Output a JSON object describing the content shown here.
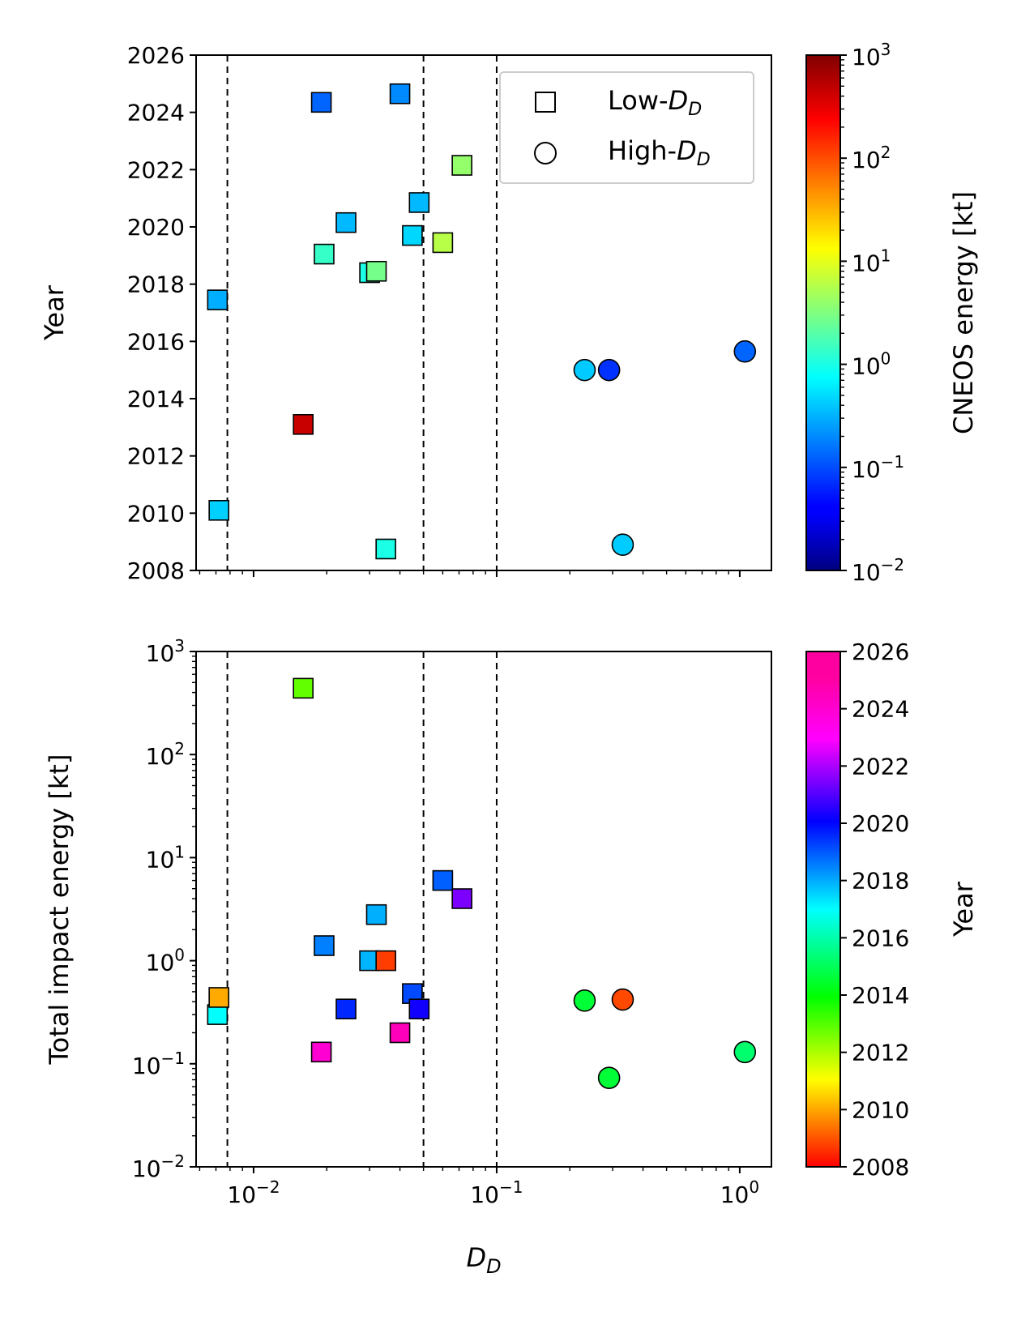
{
  "chart_data": [
    {
      "type": "scatter",
      "panel": "top",
      "xlabel": "D_D",
      "ylabel": "Year",
      "xscale": "log",
      "xlim": [
        0.0058,
        1.35
      ],
      "ylim": [
        2008,
        2026
      ],
      "y_ticks": [
        2008,
        2010,
        2012,
        2014,
        2016,
        2018,
        2020,
        2022,
        2024,
        2026
      ],
      "vertical_lines": [
        0.0078,
        0.05,
        0.1
      ],
      "legend": {
        "position": "top-right",
        "entries": [
          {
            "marker": "square",
            "label_main": "Low-",
            "label_var": "D",
            "label_sub": "D"
          },
          {
            "marker": "circle",
            "label_main": "High-",
            "label_var": "D",
            "label_sub": "D"
          }
        ]
      },
      "colorbar": {
        "label": "CNEOS energy [kt]",
        "scale": "log",
        "range": [
          0.01,
          1000
        ],
        "ticks": [
          {
            "base": "10",
            "exp": "3",
            "value": 1000
          },
          {
            "base": "10",
            "exp": "2",
            "value": 100
          },
          {
            "base": "10",
            "exp": "1",
            "value": 10
          },
          {
            "base": "10",
            "exp": "0",
            "value": 1
          },
          {
            "base": "10",
            "exp": "−1",
            "value": 0.1
          },
          {
            "base": "10",
            "exp": "−2",
            "value": 0.01
          }
        ]
      }
    },
    {
      "type": "scatter",
      "panel": "bottom",
      "xlabel": "D_D",
      "ylabel": "Total impact energy [kt]",
      "xscale": "log",
      "yscale": "log",
      "xlim": [
        0.0058,
        1.35
      ],
      "ylim": [
        0.01,
        1000
      ],
      "x_ticks": [
        {
          "base": "10",
          "exp": "−2",
          "value": 0.01
        },
        {
          "base": "10",
          "exp": "−1",
          "value": 0.1
        },
        {
          "base": "10",
          "exp": "0",
          "value": 1
        }
      ],
      "y_ticks": [
        {
          "base": "10",
          "exp": "3",
          "value": 1000
        },
        {
          "base": "10",
          "exp": "2",
          "value": 100
        },
        {
          "base": "10",
          "exp": "1",
          "value": 10
        },
        {
          "base": "10",
          "exp": "0",
          "value": 1
        },
        {
          "base": "10",
          "exp": "−1",
          "value": 0.1
        },
        {
          "base": "10",
          "exp": "−2",
          "value": 0.01
        }
      ],
      "vertical_lines": [
        0.0078,
        0.05,
        0.1
      ],
      "colorbar": {
        "label": "Year",
        "scale": "linear",
        "range": [
          2008,
          2026
        ],
        "ticks": [
          2026,
          2024,
          2022,
          2020,
          2018,
          2016,
          2014,
          2012,
          2010,
          2008
        ]
      }
    }
  ],
  "events": [
    {
      "dd": 0.0071,
      "year": 2017.45,
      "cneos_energy": 0.3,
      "total_energy": 0.3,
      "marker": "square"
    },
    {
      "dd": 0.0072,
      "year": 2010.1,
      "cneos_energy": 0.44,
      "total_energy": 0.44,
      "marker": "square"
    },
    {
      "dd": 0.016,
      "year": 2013.1,
      "cneos_energy": 440,
      "total_energy": 440,
      "marker": "square"
    },
    {
      "dd": 0.019,
      "year": 2024.35,
      "cneos_energy": 0.13,
      "total_energy": 0.13,
      "marker": "square"
    },
    {
      "dd": 0.0195,
      "year": 2019.05,
      "cneos_energy": 1.4,
      "total_energy": 1.4,
      "marker": "square"
    },
    {
      "dd": 0.024,
      "year": 2020.15,
      "cneos_energy": 0.34,
      "total_energy": 0.34,
      "marker": "square"
    },
    {
      "dd": 0.03,
      "year": 2018.4,
      "cneos_energy": 1.0,
      "total_energy": 1.0,
      "marker": "square"
    },
    {
      "dd": 0.032,
      "year": 2018.45,
      "cneos_energy": 2.8,
      "total_energy": 2.8,
      "marker": "square"
    },
    {
      "dd": 0.035,
      "year": 2008.75,
      "cneos_energy": 1.0,
      "total_energy": 1.0,
      "marker": "square"
    },
    {
      "dd": 0.04,
      "year": 2024.65,
      "cneos_energy": 0.2,
      "total_energy": 0.2,
      "marker": "square"
    },
    {
      "dd": 0.045,
      "year": 2019.7,
      "cneos_energy": 0.48,
      "total_energy": 0.48,
      "marker": "square"
    },
    {
      "dd": 0.048,
      "year": 2020.85,
      "cneos_energy": 0.34,
      "total_energy": 0.34,
      "marker": "square"
    },
    {
      "dd": 0.06,
      "year": 2019.45,
      "cneos_energy": 6.0,
      "total_energy": 6.0,
      "marker": "square"
    },
    {
      "dd": 0.072,
      "year": 2022.15,
      "cneos_energy": 4.0,
      "total_energy": 4.0,
      "marker": "square"
    },
    {
      "dd": 0.23,
      "year": 2015.0,
      "cneos_energy": 0.41,
      "total_energy": 0.41,
      "marker": "circle"
    },
    {
      "dd": 0.29,
      "year": 2015.0,
      "cneos_energy": 0.073,
      "total_energy": 0.073,
      "marker": "circle"
    },
    {
      "dd": 0.33,
      "year": 2008.9,
      "cneos_energy": 0.42,
      "total_energy": 0.42,
      "marker": "circle"
    },
    {
      "dd": 1.05,
      "year": 2015.65,
      "cneos_energy": 0.13,
      "total_energy": 0.13,
      "marker": "circle"
    }
  ]
}
